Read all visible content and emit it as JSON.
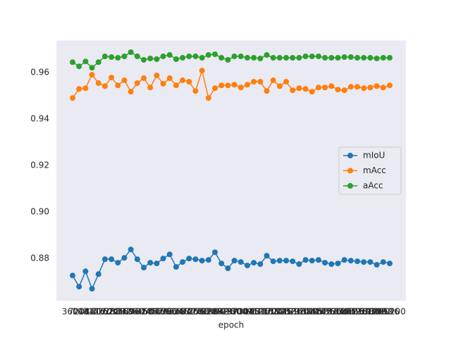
{
  "chart_data": {
    "type": "line",
    "x_label": "epoch",
    "categories": [
      3604,
      7208,
      10812,
      14416,
      18020,
      21624,
      25228,
      28832,
      32436,
      36040,
      39644,
      43248,
      46852,
      50456,
      54060,
      57664,
      61268,
      64872,
      68476,
      72080,
      75684,
      79288,
      82892,
      86496,
      90100,
      93704,
      97308,
      100912,
      104516,
      108120,
      111724,
      115328,
      118932,
      122536,
      126140,
      129744,
      133348,
      136952,
      140556,
      144160,
      147764,
      151368,
      154972,
      158576,
      162180,
      165784,
      169388,
      172992,
      176596,
      180200
    ],
    "series": [
      {
        "name": "mIoU",
        "color": "#1f77b4",
        "values": [
          0.8727,
          0.8679,
          0.8745,
          0.867,
          0.8733,
          0.8797,
          0.8797,
          0.8782,
          0.8803,
          0.8839,
          0.8797,
          0.8761,
          0.8782,
          0.8779,
          0.88,
          0.8818,
          0.8764,
          0.8785,
          0.88,
          0.8797,
          0.8791,
          0.8794,
          0.8827,
          0.8779,
          0.8758,
          0.8791,
          0.8785,
          0.877,
          0.8782,
          0.8776,
          0.8812,
          0.8788,
          0.8791,
          0.8791,
          0.8788,
          0.8776,
          0.8794,
          0.8791,
          0.8794,
          0.8782,
          0.8776,
          0.8779,
          0.8794,
          0.8791,
          0.8788,
          0.8785,
          0.8785,
          0.8773,
          0.8785,
          0.8779
        ]
      },
      {
        "name": "mAcc",
        "color": "#ff7f0e",
        "values": [
          0.9491,
          0.953,
          0.9533,
          0.9591,
          0.9555,
          0.9542,
          0.9579,
          0.9545,
          0.9567,
          0.9518,
          0.9555,
          0.9576,
          0.9536,
          0.9588,
          0.9552,
          0.9576,
          0.9545,
          0.9567,
          0.9561,
          0.9521,
          0.9609,
          0.9491,
          0.9533,
          0.9545,
          0.9545,
          0.9548,
          0.9536,
          0.9548,
          0.9561,
          0.9561,
          0.9521,
          0.9567,
          0.9542,
          0.9561,
          0.9524,
          0.9533,
          0.953,
          0.9518,
          0.9536,
          0.9536,
          0.9542,
          0.9527,
          0.9524,
          0.9539,
          0.9539,
          0.9533,
          0.9536,
          0.9542,
          0.9536,
          0.9545
        ]
      },
      {
        "name": "aAcc",
        "color": "#2ca02c",
        "values": [
          0.9645,
          0.9627,
          0.9648,
          0.9621,
          0.9645,
          0.967,
          0.9667,
          0.9664,
          0.967,
          0.9688,
          0.967,
          0.9655,
          0.9661,
          0.9658,
          0.967,
          0.9676,
          0.9658,
          0.9664,
          0.967,
          0.967,
          0.9664,
          0.9676,
          0.9679,
          0.9664,
          0.9655,
          0.967,
          0.967,
          0.9664,
          0.9664,
          0.9661,
          0.9676,
          0.9664,
          0.9664,
          0.9664,
          0.9664,
          0.9664,
          0.967,
          0.967,
          0.967,
          0.9664,
          0.9664,
          0.9664,
          0.9667,
          0.9667,
          0.9664,
          0.9664,
          0.9664,
          0.9661,
          0.9664,
          0.9664
        ]
      }
    ],
    "ylim": [
      0.8618,
      0.9738
    ],
    "yticks": [
      0.88,
      {
        "value": 0.9,
        "label": "0.90"
      },
      0.92,
      0.94,
      0.96
    ],
    "legend": "center right",
    "grid": false
  }
}
